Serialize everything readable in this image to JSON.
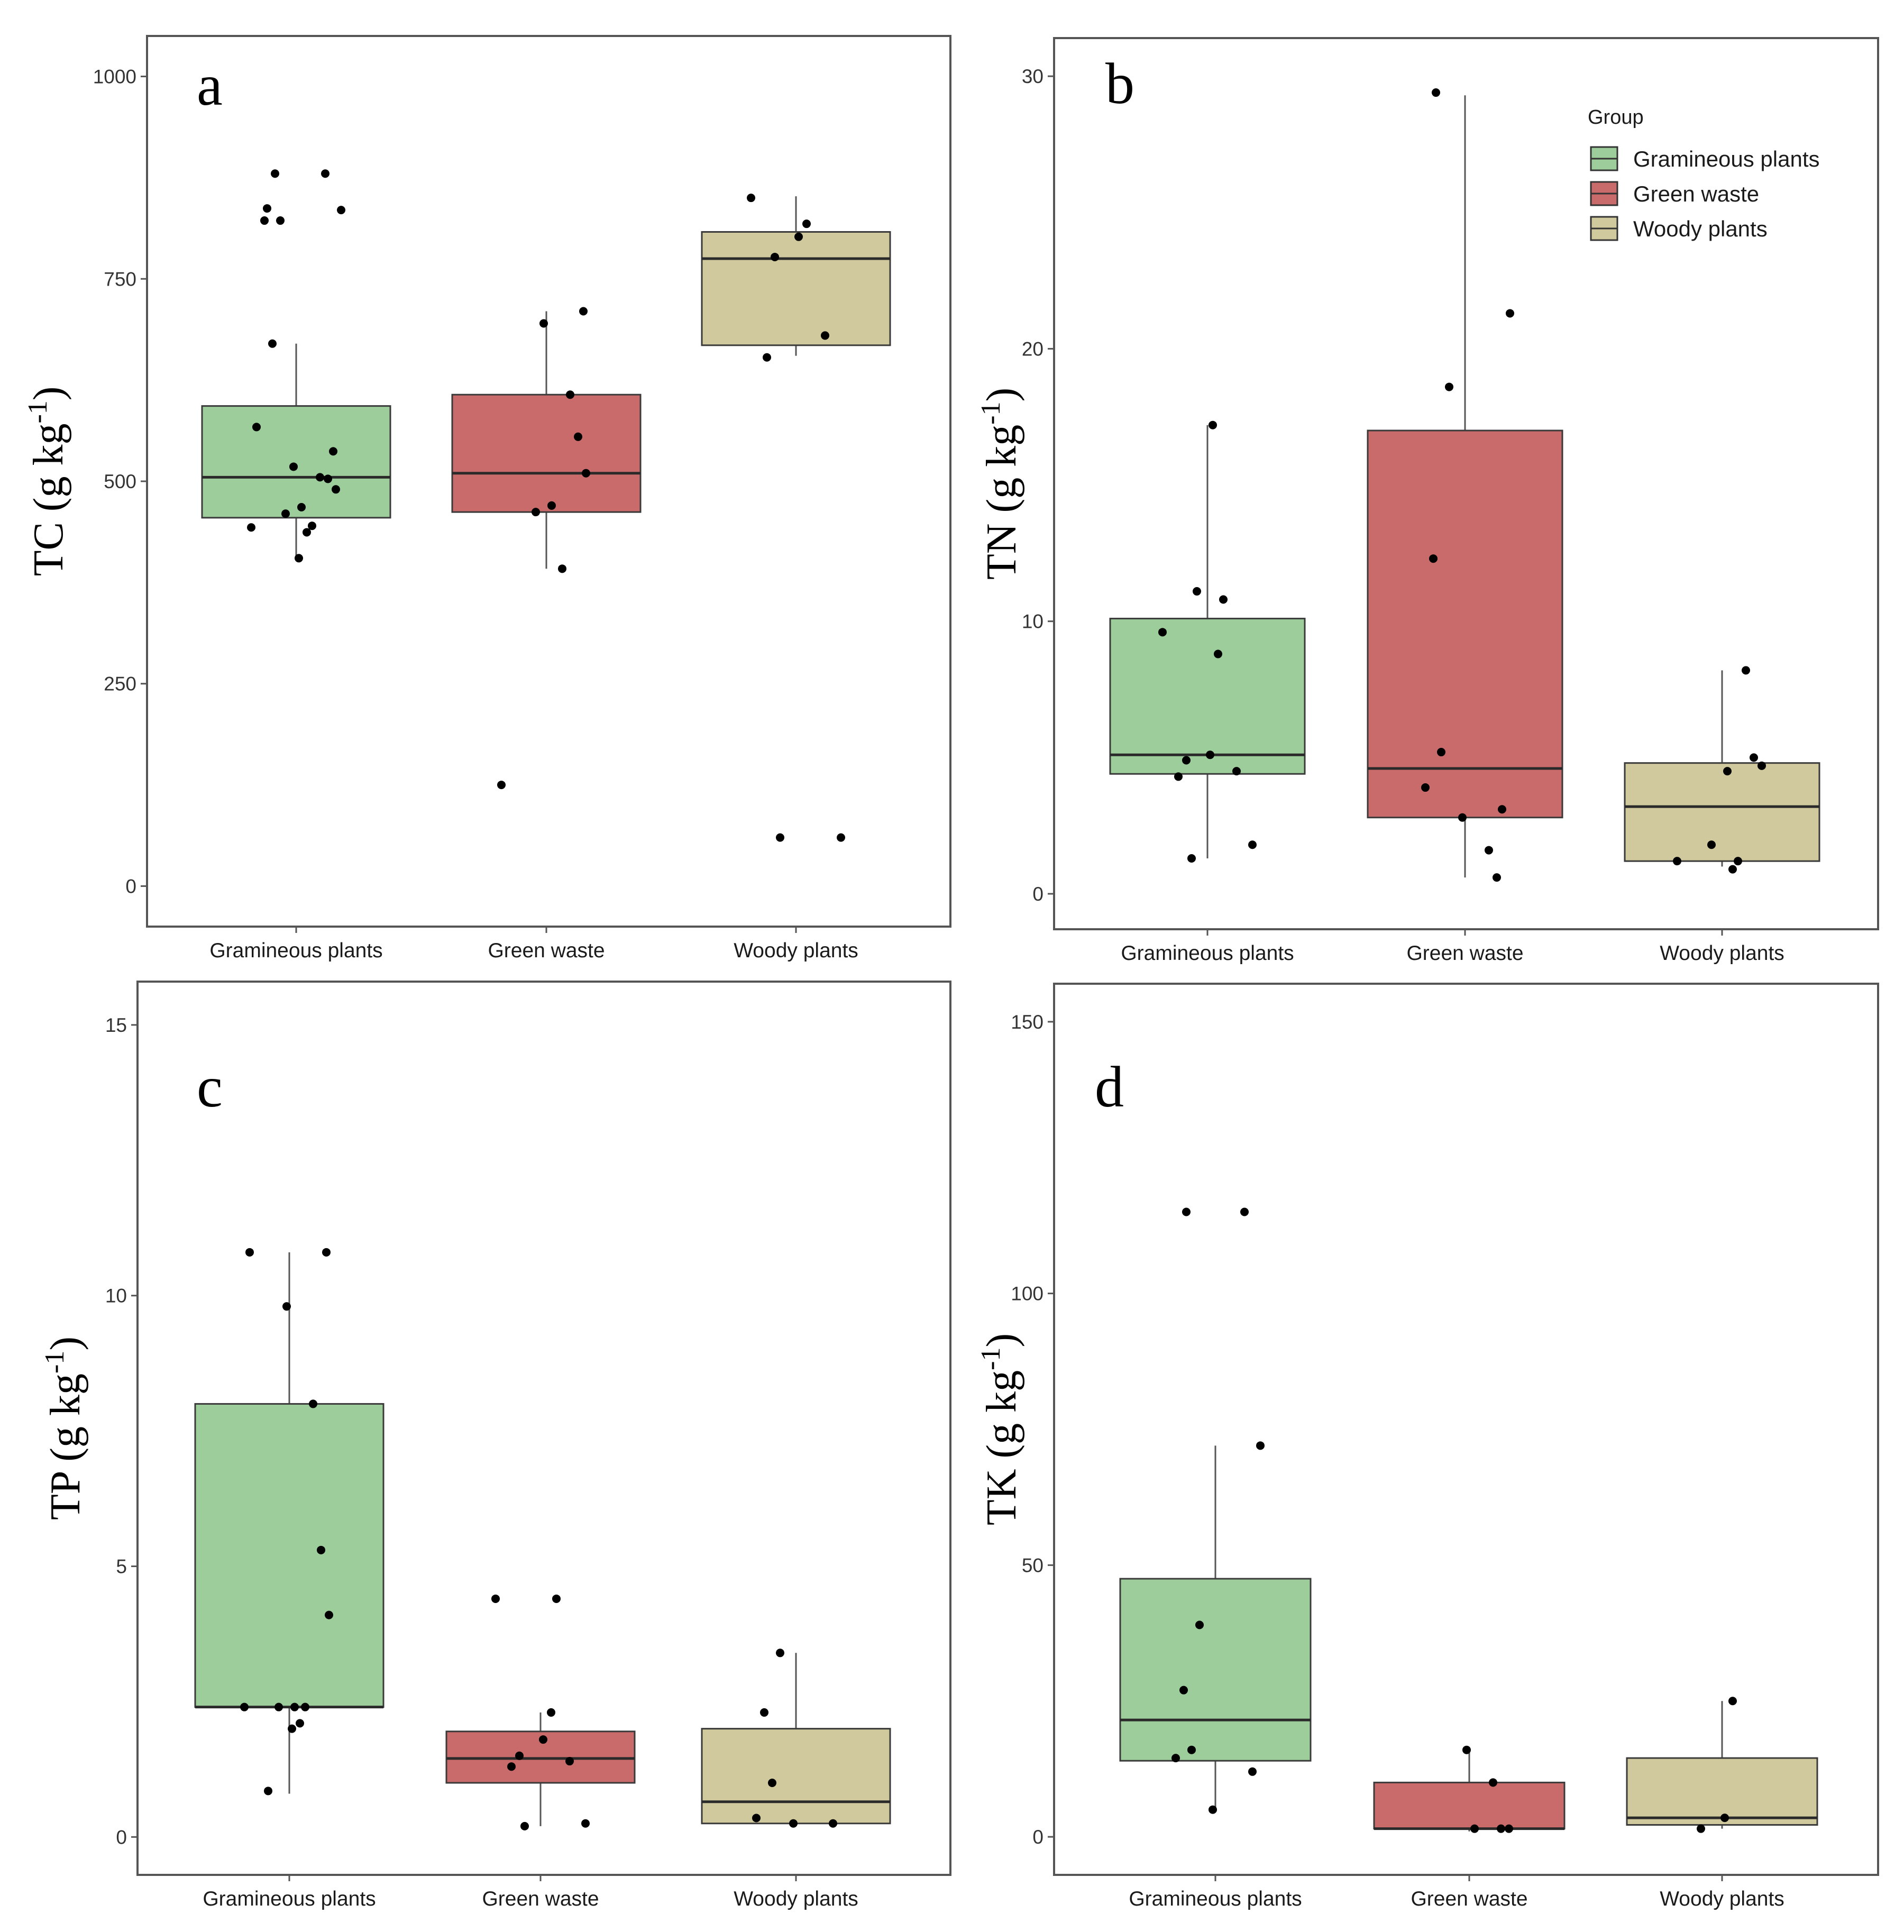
{
  "groups": [
    {
      "name": "Gramineous plants",
      "color": "#9ccd9a"
    },
    {
      "name": "Green waste",
      "color": "#c96b6b"
    },
    {
      "name": "Woody plants",
      "color": "#d0c99d"
    }
  ],
  "legend": {
    "title": "Group",
    "entries": [
      "Gramineous plants",
      "Green waste",
      "Woody plants"
    ]
  },
  "chart_data": [
    {
      "type": "box",
      "panel_label": "a",
      "ylabel": "TC (g kg",
      "ylabel_sup": "-1",
      "ylabel_close": ")",
      "ylim": [
        -50,
        1050
      ],
      "yticks": [
        0,
        250,
        500,
        750,
        1000
      ],
      "categories": [
        "Gramineous plants",
        "Green waste",
        "Woody plants"
      ],
      "boxes": [
        {
          "q1": 455,
          "median": 505,
          "q3": 593,
          "whisker_low": 405,
          "whisker_high": 670
        },
        {
          "q1": 462,
          "median": 510,
          "q3": 607,
          "whisker_low": 392,
          "whisker_high": 710
        },
        {
          "q1": 668,
          "median": 775,
          "q3": 808,
          "whisker_low": 655,
          "whisker_high": 852
        }
      ],
      "points": [
        [
          880,
          880,
          837,
          835,
          822,
          822,
          670,
          567,
          537,
          518,
          505,
          503,
          490,
          468,
          460,
          445,
          443,
          437,
          405
        ],
        [
          710,
          695,
          607,
          555,
          510,
          470,
          462,
          392,
          125
        ],
        [
          850,
          818,
          802,
          777,
          680,
          653,
          60,
          60
        ]
      ]
    },
    {
      "type": "box",
      "panel_label": "b",
      "ylabel": "TN (g kg",
      "ylabel_sup": "-1",
      "ylabel_close": ")",
      "ylim": [
        -1.3,
        31.4
      ],
      "yticks": [
        0,
        10,
        20,
        30
      ],
      "categories": [
        "Gramineous plants",
        "Green waste",
        "Woody plants"
      ],
      "boxes": [
        {
          "q1": 4.4,
          "median": 5.1,
          "q3": 10.1,
          "whisker_low": 1.3,
          "whisker_high": 17.2
        },
        {
          "q1": 2.8,
          "median": 4.6,
          "q3": 17.0,
          "whisker_low": 0.6,
          "whisker_high": 29.3
        },
        {
          "q1": 1.2,
          "median": 3.2,
          "q3": 4.8,
          "whisker_low": 1.0,
          "whisker_high": 8.2
        }
      ],
      "points": [
        [
          17.2,
          11.1,
          10.8,
          9.6,
          8.8,
          5.1,
          4.9,
          4.5,
          4.3,
          1.8,
          1.3
        ],
        [
          29.4,
          21.3,
          18.6,
          12.3,
          5.2,
          3.9,
          3.1,
          2.8,
          1.6,
          0.6
        ],
        [
          8.2,
          5.0,
          4.7,
          4.5,
          1.8,
          1.2,
          1.2,
          0.9
        ]
      ]
    },
    {
      "type": "box",
      "panel_label": "c",
      "ylabel": "TP (g kg",
      "ylabel_sup": "-1",
      "ylabel_close": ")",
      "ylim": [
        -0.7,
        15.8
      ],
      "yticks": [
        0,
        5,
        10,
        15
      ],
      "categories": [
        "Gramineous plants",
        "Green waste",
        "Woody plants"
      ],
      "boxes": [
        {
          "q1": 2.4,
          "median": 2.4,
          "q3": 8.0,
          "whisker_low": 0.8,
          "whisker_high": 10.8
        },
        {
          "q1": 1.0,
          "median": 1.45,
          "q3": 1.95,
          "whisker_low": 0.2,
          "whisker_high": 2.3
        },
        {
          "q1": 0.25,
          "median": 0.65,
          "q3": 2.0,
          "whisker_low": 0.2,
          "whisker_high": 3.4
        }
      ],
      "points": [
        [
          10.8,
          10.8,
          9.8,
          8.0,
          5.3,
          4.1,
          2.4,
          2.4,
          2.4,
          2.4,
          2.1,
          2.0,
          0.85
        ],
        [
          4.4,
          4.4,
          2.3,
          1.8,
          1.5,
          1.4,
          1.3,
          0.25,
          0.2
        ],
        [
          3.4,
          2.3,
          1.0,
          0.35,
          0.25,
          0.25
        ]
      ]
    },
    {
      "type": "box",
      "panel_label": "d",
      "ylabel": "TK (g kg",
      "ylabel_sup": "-1",
      "ylabel_close": ")",
      "ylim": [
        -7,
        157
      ],
      "yticks": [
        0,
        50,
        100,
        150
      ],
      "categories": [
        "Gramineous plants",
        "Green waste",
        "Woody plants"
      ],
      "boxes": [
        {
          "q1": 14,
          "median": 21.5,
          "q3": 47.5,
          "whisker_low": 5,
          "whisker_high": 72
        },
        {
          "q1": 1.5,
          "median": 1.5,
          "q3": 10,
          "whisker_low": 1,
          "whisker_high": 16
        },
        {
          "q1": 2.2,
          "median": 3.5,
          "q3": 14.5,
          "whisker_low": 1.5,
          "whisker_high": 25
        }
      ],
      "points": [
        [
          115,
          115,
          72,
          39,
          27,
          16,
          14.5,
          12,
          5
        ],
        [
          16,
          10,
          1.5,
          1.5,
          1.5
        ],
        [
          25,
          3.5,
          1.5
        ]
      ]
    }
  ]
}
